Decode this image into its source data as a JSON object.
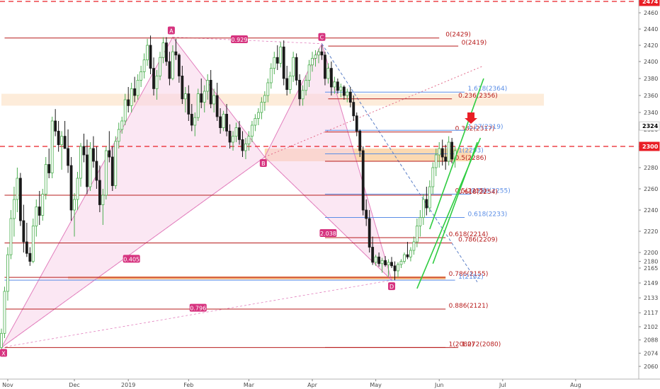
{
  "chart_data": {
    "type": "candlestick",
    "symbol_note": "",
    "x_ticks": [
      {
        "label": "Nov",
        "idx": 2
      },
      {
        "label": "Dec",
        "idx": 23
      },
      {
        "label": "2019",
        "idx": 40
      },
      {
        "label": "Feb",
        "idx": 59
      },
      {
        "label": "Mar",
        "idx": 78
      },
      {
        "label": "Apr",
        "idx": 98
      },
      {
        "label": "May",
        "idx": 118
      },
      {
        "label": "Jun",
        "idx": 138
      },
      {
        "label": "Jul",
        "idx": 158
      },
      {
        "label": "Aug",
        "idx": 181
      }
    ],
    "y_ticks": [
      2060,
      2074,
      2088,
      2102,
      2117,
      2133,
      2149,
      2165,
      2180,
      2200,
      2220,
      2240,
      2260,
      2280,
      2300,
      2320,
      2340,
      2360,
      2380,
      2400,
      2420,
      2440,
      2460,
      2474
    ],
    "price_badges": [
      {
        "value": "2324",
        "y": 2324,
        "bg": "#ffffff",
        "fg": "#000000"
      },
      {
        "value": "2300",
        "y": 2300,
        "bg": "#e91e25",
        "fg": "#ffffff"
      },
      {
        "value": "2474",
        "y": 2474,
        "bg": "#e91e25",
        "fg": "#ffffff"
      }
    ],
    "pattern_points": [
      {
        "label": "X",
        "idx": 0,
        "price": 2080
      },
      {
        "label": "A",
        "idx": 54,
        "price": 2430
      },
      {
        "label": "B",
        "idx": 83,
        "price": 2290
      },
      {
        "label": "C",
        "idx": 101,
        "price": 2422
      },
      {
        "label": "D",
        "idx": 123,
        "price": 2152
      }
    ],
    "pattern_ratios": [
      {
        "label": "0.929",
        "idx": 75,
        "price": 2427
      },
      {
        "label": "0.405",
        "idx": 41,
        "price": 2185
      },
      {
        "label": "0.796",
        "idx": 62,
        "price": 2122
      },
      {
        "label": "2.038",
        "idx": 103,
        "price": 2218
      }
    ],
    "fib_levels": [
      {
        "label": "0(2429)",
        "price": 2429,
        "i0": 1,
        "i1": 138,
        "lx": 140,
        "color": "#b71c1c"
      },
      {
        "label": "0(2419)",
        "price": 2419,
        "i0": 103,
        "i1": 144,
        "lx": 145,
        "color": "#b71c1c"
      },
      {
        "label": "1.618(2364)",
        "price": 2364,
        "i0": 102,
        "i1": 146,
        "lx": 147,
        "color": "#5b8ee6"
      },
      {
        "label": "0.236(2356)",
        "price": 2356,
        "i0": 103,
        "i1": 142,
        "lx": 144,
        "color": "#b71c1c"
      },
      {
        "label": "0.382(2317)",
        "price": 2317,
        "i0": 102,
        "i1": 142,
        "lx": 143,
        "color": "#b71c1c"
      },
      {
        "label": "1.27(2319)",
        "price": 2319,
        "i0": 102,
        "i1": 146,
        "lx": 147,
        "color": "#5b8ee6"
      },
      {
        "label": "1(2293)",
        "price": 2293,
        "i0": 102,
        "i1": 143,
        "lx": 144,
        "color": "#5b8ee6"
      },
      {
        "label": "0.5(2286)",
        "price": 2286,
        "i0": 102,
        "i1": 142,
        "lx": 143,
        "color": "#b71c1c"
      },
      {
        "label": "0.5(2255)",
        "price": 2255,
        "i0": 102,
        "i1": 142,
        "lx": 143,
        "color": "#b71c1c"
      },
      {
        "label": "0.786(2255)",
        "price": 2255,
        "i0": 102,
        "i1": 148,
        "lx": 148,
        "color": "#5b8ee6"
      },
      {
        "label": "0.618(2254)",
        "price": 2254,
        "i0": 1,
        "i1": 142,
        "lx": 144,
        "color": "#b71c1c"
      },
      {
        "label": "0.618(2233)",
        "price": 2233,
        "i0": 102,
        "i1": 146,
        "lx": 147,
        "color": "#5b8ee6"
      },
      {
        "label": "0.618(2214)",
        "price": 2214,
        "i0": 102,
        "i1": 140,
        "lx": 141,
        "color": "#b71c1c"
      },
      {
        "label": "0.786(2209)",
        "price": 2209,
        "i0": 1,
        "i1": 142,
        "lx": 144,
        "color": "#b71c1c"
      },
      {
        "label": "0.786(2155)",
        "price": 2155,
        "i0": 1,
        "i1": 140,
        "lx": 141,
        "color": "#b71c1c"
      },
      {
        "label": "1(2152)",
        "price": 2152,
        "i0": 1,
        "i1": 143,
        "lx": 144,
        "color": "#5b8ee6"
      },
      {
        "label": "0.886(2121)",
        "price": 2121,
        "i0": 1,
        "i1": 140,
        "lx": 141,
        "color": "#b71c1c"
      },
      {
        "label": "1(2080)",
        "price": 2080,
        "i0": 1,
        "i1": 140,
        "lx": 141,
        "color": "#b71c1c"
      },
      {
        "label": "1.272(2080)",
        "price": 2080,
        "i0": 102,
        "i1": 144,
        "lx": 145,
        "color": "#b71c1c"
      }
    ],
    "zones": [
      {
        "name": "upper-resistance-zone",
        "i0": 0,
        "i1": 171,
        "p0": 2348,
        "p1": 2362,
        "fill": "#fde9d3"
      },
      {
        "name": "b-zone",
        "i0": 83,
        "i1": 148,
        "p0": 2286,
        "p1": 2298,
        "fill": "#fcd2a3"
      },
      {
        "name": "d-zone",
        "i0": 21,
        "i1": 140,
        "p0": 2153,
        "p1": 2156,
        "fill": "#f5a35a"
      }
    ],
    "dashed_resistance": [
      2300,
      2474
    ],
    "channel": {
      "upper": [
        {
          "idx": 135,
          "price": 2222
        },
        {
          "idx": 152,
          "price": 2380
        }
      ],
      "lower": [
        {
          "idx": 131,
          "price": 2143
        },
        {
          "idx": 151,
          "price": 2310
        }
      ],
      "lower2": [
        {
          "idx": 136,
          "price": 2175
        },
        {
          "idx": 150,
          "price": 2305
        }
      ]
    },
    "candles": [
      [
        2080,
        2100,
        2075,
        2095
      ],
      [
        2095,
        2145,
        2090,
        2140
      ],
      [
        2140,
        2205,
        2130,
        2195
      ],
      [
        2195,
        2240,
        2185,
        2232
      ],
      [
        2232,
        2262,
        2215,
        2250
      ],
      [
        2250,
        2280,
        2238,
        2270
      ],
      [
        2270,
        2275,
        2225,
        2230
      ],
      [
        2230,
        2245,
        2200,
        2210
      ],
      [
        2210,
        2228,
        2190,
        2198
      ],
      [
        2198,
        2205,
        2170,
        2180
      ],
      [
        2180,
        2232,
        2176,
        2225
      ],
      [
        2225,
        2250,
        2215,
        2243
      ],
      [
        2243,
        2258,
        2226,
        2235
      ],
      [
        2235,
        2260,
        2230,
        2255
      ],
      [
        2255,
        2290,
        2250,
        2283
      ],
      [
        2283,
        2298,
        2270,
        2275
      ],
      [
        2275,
        2335,
        2270,
        2330
      ],
      [
        2330,
        2344,
        2312,
        2318
      ],
      [
        2318,
        2330,
        2295,
        2302
      ],
      [
        2302,
        2318,
        2278,
        2312
      ],
      [
        2312,
        2330,
        2300,
        2298
      ],
      [
        2298,
        2320,
        2275,
        2282
      ],
      [
        2282,
        2290,
        2230,
        2240
      ],
      [
        2240,
        2256,
        2215,
        2250
      ],
      [
        2250,
        2276,
        2240,
        2270
      ],
      [
        2270,
        2304,
        2262,
        2300
      ],
      [
        2300,
        2315,
        2285,
        2292
      ],
      [
        2292,
        2308,
        2255,
        2262
      ],
      [
        2262,
        2305,
        2258,
        2298
      ],
      [
        2298,
        2312,
        2280,
        2286
      ],
      [
        2286,
        2300,
        2260,
        2268
      ],
      [
        2268,
        2282,
        2238,
        2245
      ],
      [
        2245,
        2260,
        2226,
        2254
      ],
      [
        2254,
        2300,
        2250,
        2296
      ],
      [
        2296,
        2318,
        2285,
        2290
      ],
      [
        2290,
        2300,
        2258,
        2263
      ],
      [
        2263,
        2312,
        2260,
        2306
      ],
      [
        2306,
        2328,
        2298,
        2320
      ],
      [
        2320,
        2335,
        2315,
        2330
      ],
      [
        2330,
        2362,
        2325,
        2355
      ],
      [
        2355,
        2370,
        2340,
        2348
      ],
      [
        2348,
        2375,
        2340,
        2368
      ],
      [
        2368,
        2382,
        2352,
        2360
      ],
      [
        2360,
        2385,
        2355,
        2378
      ],
      [
        2378,
        2395,
        2370,
        2388
      ],
      [
        2388,
        2410,
        2380,
        2402
      ],
      [
        2402,
        2428,
        2395,
        2420
      ],
      [
        2420,
        2432,
        2385,
        2392
      ],
      [
        2392,
        2405,
        2360,
        2368
      ],
      [
        2368,
        2390,
        2355,
        2383
      ],
      [
        2383,
        2412,
        2378,
        2405
      ],
      [
        2405,
        2430,
        2398,
        2423
      ],
      [
        2423,
        2430,
        2395,
        2400
      ],
      [
        2400,
        2412,
        2372,
        2380
      ],
      [
        2380,
        2420,
        2378,
        2412
      ],
      [
        2412,
        2428,
        2402,
        2408
      ],
      [
        2408,
        2410,
        2375,
        2383
      ],
      [
        2383,
        2395,
        2350,
        2356
      ],
      [
        2356,
        2370,
        2340,
        2362
      ],
      [
        2362,
        2372,
        2330,
        2338
      ],
      [
        2338,
        2350,
        2318,
        2325
      ],
      [
        2325,
        2340,
        2312,
        2334
      ],
      [
        2334,
        2368,
        2330,
        2362
      ],
      [
        2362,
        2380,
        2345,
        2352
      ],
      [
        2352,
        2372,
        2340,
        2365
      ],
      [
        2365,
        2385,
        2355,
        2378
      ],
      [
        2378,
        2390,
        2345,
        2350
      ],
      [
        2350,
        2368,
        2340,
        2360
      ],
      [
        2360,
        2375,
        2330,
        2335
      ],
      [
        2335,
        2345,
        2315,
        2322
      ],
      [
        2322,
        2342,
        2318,
        2338
      ],
      [
        2338,
        2350,
        2312,
        2318
      ],
      [
        2318,
        2326,
        2298,
        2305
      ],
      [
        2305,
        2318,
        2296,
        2312
      ],
      [
        2312,
        2328,
        2305,
        2322
      ],
      [
        2322,
        2330,
        2302,
        2308
      ],
      [
        2308,
        2318,
        2290,
        2296
      ],
      [
        2296,
        2310,
        2288,
        2303
      ],
      [
        2303,
        2318,
        2296,
        2312
      ],
      [
        2312,
        2330,
        2305,
        2325
      ],
      [
        2325,
        2338,
        2318,
        2333
      ],
      [
        2333,
        2345,
        2325,
        2340
      ],
      [
        2340,
        2358,
        2332,
        2352
      ],
      [
        2352,
        2365,
        2342,
        2360
      ],
      [
        2360,
        2380,
        2352,
        2375
      ],
      [
        2375,
        2398,
        2368,
        2392
      ],
      [
        2392,
        2412,
        2385,
        2405
      ],
      [
        2405,
        2420,
        2390,
        2398
      ],
      [
        2398,
        2424,
        2393,
        2418
      ],
      [
        2418,
        2426,
        2372,
        2380
      ],
      [
        2380,
        2395,
        2360,
        2367
      ],
      [
        2367,
        2388,
        2362,
        2383
      ],
      [
        2383,
        2412,
        2376,
        2405
      ],
      [
        2405,
        2410,
        2372,
        2378
      ],
      [
        2378,
        2385,
        2348,
        2356
      ],
      [
        2356,
        2372,
        2348,
        2366
      ],
      [
        2366,
        2384,
        2360,
        2378
      ],
      [
        2378,
        2402,
        2370,
        2396
      ],
      [
        2396,
        2412,
        2388,
        2404
      ],
      [
        2404,
        2414,
        2394,
        2408
      ],
      [
        2408,
        2416,
        2398,
        2412
      ],
      [
        2412,
        2420,
        2402,
        2408
      ],
      [
        2408,
        2412,
        2372,
        2380
      ],
      [
        2380,
        2398,
        2374,
        2392
      ],
      [
        2392,
        2400,
        2360,
        2370
      ],
      [
        2370,
        2382,
        2362,
        2376
      ],
      [
        2376,
        2380,
        2362,
        2366
      ],
      [
        2366,
        2374,
        2358,
        2370
      ],
      [
        2370,
        2372,
        2355,
        2360
      ],
      [
        2360,
        2368,
        2352,
        2364
      ],
      [
        2364,
        2370,
        2346,
        2352
      ],
      [
        2352,
        2360,
        2330,
        2336
      ],
      [
        2336,
        2340,
        2312,
        2318
      ],
      [
        2318,
        2320,
        2290,
        2296
      ],
      [
        2296,
        2300,
        2235,
        2240
      ],
      [
        2240,
        2250,
        2225,
        2232
      ],
      [
        2232,
        2240,
        2200,
        2205
      ],
      [
        2205,
        2215,
        2172,
        2178
      ],
      [
        2178,
        2195,
        2170,
        2190
      ],
      [
        2190,
        2200,
        2168,
        2175
      ],
      [
        2175,
        2188,
        2160,
        2182
      ],
      [
        2182,
        2192,
        2168,
        2172
      ],
      [
        2172,
        2185,
        2156,
        2178
      ],
      [
        2178,
        2190,
        2165,
        2170
      ],
      [
        2170,
        2180,
        2152,
        2162
      ],
      [
        2162,
        2178,
        2155,
        2173
      ],
      [
        2173,
        2185,
        2165,
        2180
      ],
      [
        2180,
        2200,
        2175,
        2195
      ],
      [
        2195,
        2210,
        2185,
        2190
      ],
      [
        2190,
        2205,
        2180,
        2202
      ],
      [
        2202,
        2215,
        2195,
        2210
      ],
      [
        2210,
        2232,
        2205,
        2225
      ],
      [
        2225,
        2240,
        2215,
        2233
      ],
      [
        2233,
        2255,
        2226,
        2250
      ],
      [
        2250,
        2262,
        2235,
        2242
      ],
      [
        2242,
        2268,
        2238,
        2262
      ],
      [
        2262,
        2285,
        2255,
        2280
      ],
      [
        2280,
        2298,
        2272,
        2292
      ],
      [
        2292,
        2305,
        2280,
        2298
      ],
      [
        2298,
        2308,
        2282,
        2290
      ],
      [
        2290,
        2302,
        2278,
        2286
      ],
      [
        2286,
        2312,
        2282,
        2305
      ],
      [
        2305,
        2310,
        2284,
        2288
      ],
      [
        2288,
        2300,
        2280,
        2296
      ]
    ]
  }
}
